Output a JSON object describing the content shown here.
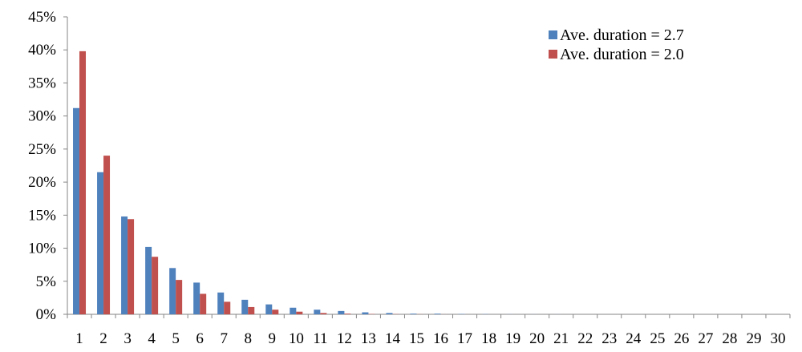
{
  "chart_data": {
    "type": "bar",
    "categories": [
      "1",
      "2",
      "3",
      "4",
      "5",
      "6",
      "7",
      "8",
      "9",
      "10",
      "11",
      "12",
      "13",
      "14",
      "15",
      "16",
      "17",
      "18",
      "19",
      "20",
      "21",
      "22",
      "23",
      "24",
      "25",
      "26",
      "27",
      "28",
      "29",
      "30"
    ],
    "series": [
      {
        "name": "Ave. duration = 2.7",
        "color": "#4f81bd",
        "values": [
          31.2,
          21.5,
          14.8,
          10.2,
          7.0,
          4.8,
          3.3,
          2.2,
          1.5,
          1.0,
          0.7,
          0.5,
          0.3,
          0.2,
          0.1,
          0.1,
          0.05,
          0.03,
          0.02,
          0.01,
          0.01,
          0.0,
          0.0,
          0.0,
          0.0,
          0.0,
          0.0,
          0.0,
          0.0,
          0.0
        ]
      },
      {
        "name": "Ave. duration = 2.0",
        "color": "#c0504d",
        "values": [
          39.8,
          24.0,
          14.4,
          8.7,
          5.2,
          3.1,
          1.9,
          1.1,
          0.7,
          0.4,
          0.2,
          0.1,
          0.05,
          0.03,
          0.02,
          0.01,
          0.0,
          0.0,
          0.0,
          0.0,
          0.0,
          0.0,
          0.0,
          0.0,
          0.0,
          0.0,
          0.0,
          0.0,
          0.0,
          0.0
        ]
      }
    ],
    "ylim": [
      0,
      45
    ],
    "yticks": [
      "0%",
      "5%",
      "10%",
      "15%",
      "20%",
      "25%",
      "30%",
      "35%",
      "40%",
      "45%"
    ],
    "title": "",
    "xlabel": "",
    "ylabel": "",
    "grid": false,
    "legend_position": "top-right"
  }
}
